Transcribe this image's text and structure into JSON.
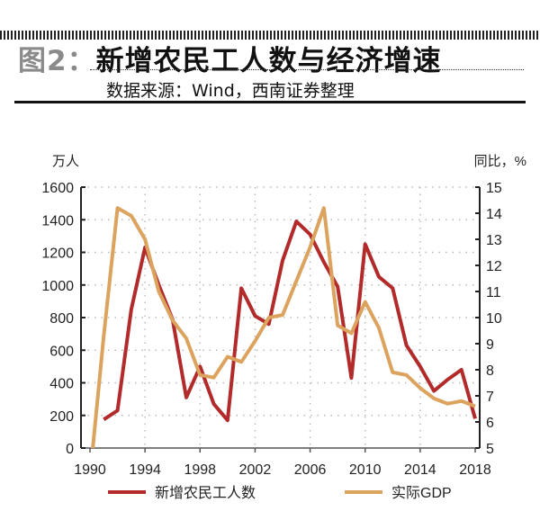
{
  "header": {
    "figure_label": "图2：",
    "title": "新增农民工人数与经济增速",
    "source": "数据来源：Wind，西南证券整理"
  },
  "chart_data": {
    "type": "line",
    "title": "新增农民工人数与经济增速",
    "left_unit": "万人",
    "right_unit": "同比，%",
    "x_ticks": [
      1990,
      1994,
      1998,
      2002,
      2006,
      2010,
      2014,
      2018
    ],
    "xlim": [
      1990,
      2018
    ],
    "ylim_left": [
      0,
      1600
    ],
    "y_ticks_left": [
      0,
      200,
      400,
      600,
      800,
      1000,
      1200,
      1400,
      1600
    ],
    "ylim_right": [
      5,
      15
    ],
    "y_ticks_right": [
      5,
      6,
      7,
      8,
      9,
      10,
      11,
      12,
      13,
      14,
      15
    ],
    "grid": true,
    "legend_position": "bottom",
    "series": [
      {
        "name": "新增农民工人数",
        "axis": "left",
        "color": "#b22a2a",
        "x": [
          1991,
          1992,
          1993,
          1994,
          1995,
          1996,
          1997,
          1998,
          1999,
          2000,
          2001,
          2002,
          2003,
          2004,
          2005,
          2006,
          2007,
          2008,
          2009,
          2010,
          2011,
          2012,
          2013,
          2014,
          2015,
          2016,
          2017,
          2018
        ],
        "values": [
          175,
          230,
          850,
          1230,
          1000,
          790,
          310,
          500,
          270,
          170,
          980,
          810,
          760,
          1150,
          1390,
          1310,
          1140,
          990,
          430,
          1250,
          1050,
          980,
          630,
          500,
          350,
          420,
          480,
          180
        ]
      },
      {
        "name": "实际GDP",
        "axis": "right",
        "color": "#dca35e",
        "x": [
          1990,
          1991,
          1992,
          1993,
          1994,
          1995,
          1996,
          1997,
          1998,
          1999,
          2000,
          2001,
          2002,
          2003,
          2004,
          2005,
          2006,
          2007,
          2008,
          2009,
          2010,
          2011,
          2012,
          2013,
          2014,
          2015,
          2016,
          2017,
          2018
        ],
        "values": [
          3.9,
          9.3,
          14.2,
          13.9,
          13.0,
          11.0,
          9.9,
          9.2,
          7.8,
          7.7,
          8.5,
          8.3,
          9.1,
          10.0,
          10.1,
          11.4,
          12.7,
          14.2,
          9.7,
          9.4,
          10.6,
          9.6,
          7.9,
          7.8,
          7.3,
          6.9,
          6.7,
          6.8,
          6.6
        ]
      }
    ]
  }
}
